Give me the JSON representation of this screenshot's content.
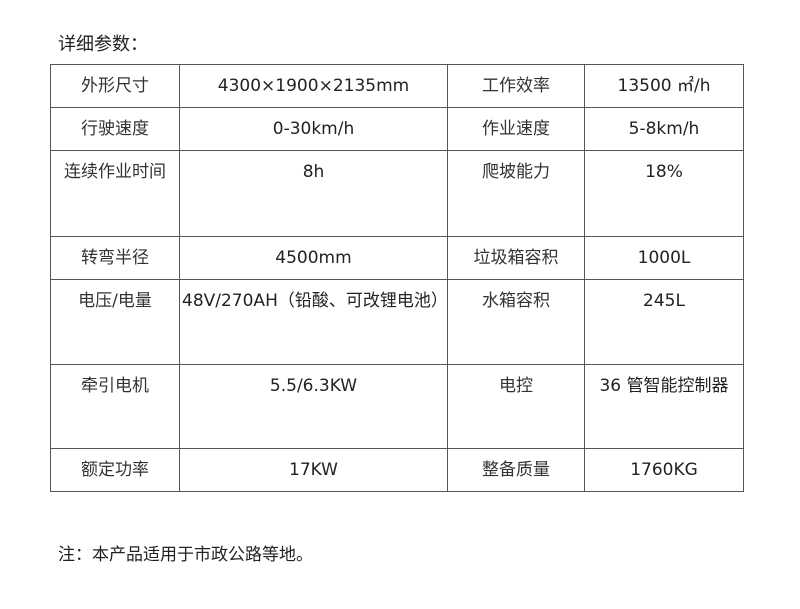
{
  "title": "详细参数：",
  "rows": [
    [
      "外形尺寸",
      "4300×1900×2135mm",
      "工作效率",
      "13500 ㎡/h"
    ],
    [
      "行驶速度",
      "0-30km/h",
      "作业速度",
      "5-8km/h"
    ],
    [
      "连续作业时间",
      "8h",
      "爬坡能力",
      "18%"
    ],
    [
      "转弯半径",
      "4500mm",
      "垃圾箱容积",
      "1000L"
    ],
    [
      "电压/电量",
      "48V/270AH（铅酸、可改锂电池）",
      "水箱容积",
      "245L"
    ],
    [
      "牵引电机",
      "5.5/6.3KW",
      "电控",
      "36 管智能控制器"
    ],
    [
      "额定功率",
      "17KW",
      "整备质量",
      "1760KG"
    ]
  ],
  "note": "注：本产品适用于市政公路等地。"
}
